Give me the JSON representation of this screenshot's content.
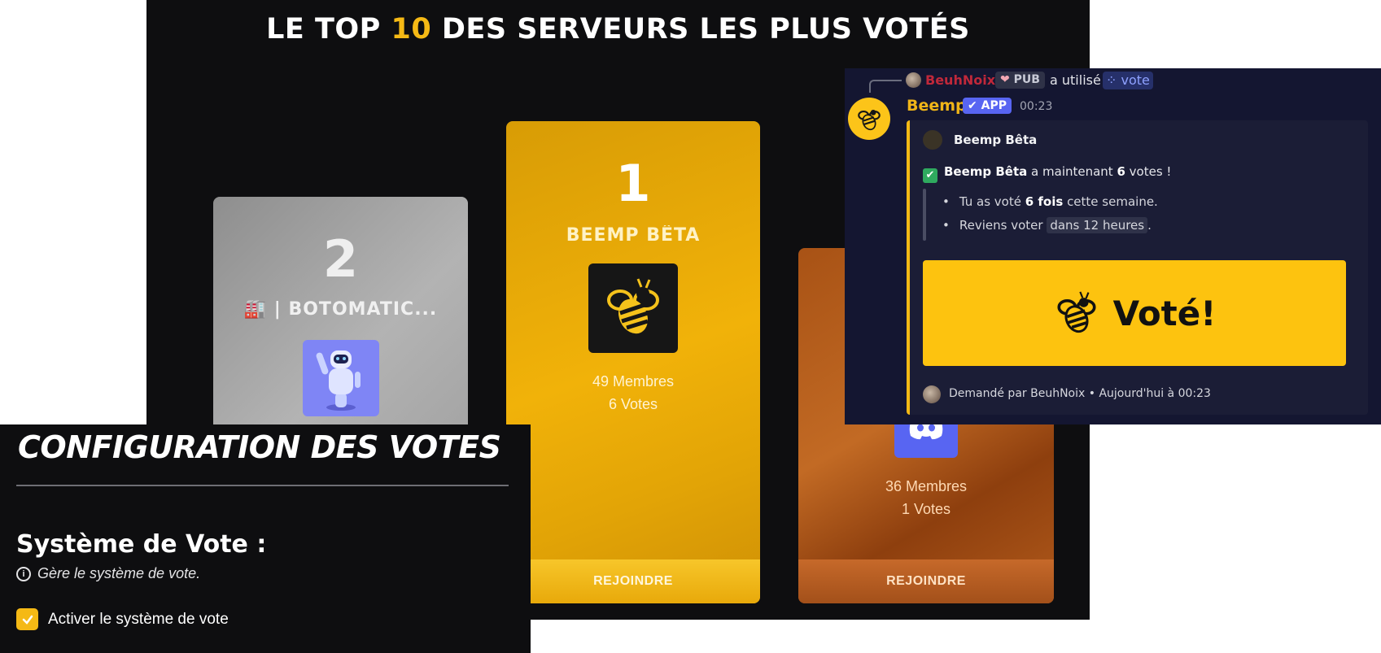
{
  "board": {
    "title_prefix": "LE TOP ",
    "title_highlight": "10",
    "title_suffix": " DES SERVEURS LES PLUS VOTÉS",
    "cards": [
      {
        "rank": "2",
        "name": "🏭 | BOTOMATIC...",
        "logo_icon": "robot-icon"
      },
      {
        "rank": "1",
        "name": "BEEMP BÊTA",
        "members": "49 Membres",
        "votes": "6 Votes",
        "join": "REJOINDRE",
        "logo_icon": "bee-icon"
      },
      {
        "members": "36 Membres",
        "votes": "1 Votes",
        "join": "REJOINDRE",
        "logo_icon": "discord-icon"
      }
    ]
  },
  "discord": {
    "reply_user": "BeuhNoix",
    "reply_tag": "PUB",
    "reply_used": "a utilisé",
    "reply_command": "vote",
    "bot_name": "Beemp",
    "bot_badge": "✔ APP",
    "time": "00:23",
    "embed": {
      "author": "Beemp Bêta",
      "line_server": "Beemp Bêta",
      "line_mid": " a maintenant ",
      "line_count": "6",
      "line_end": " votes !",
      "b1_pre": "Tu as voté ",
      "b1_bold": "6 fois",
      "b1_post": " cette semaine.",
      "b2_pre": "Reviens voter ",
      "b2_code": "dans 12 heures",
      "b2_post": ".",
      "button_label": "Voté!",
      "footer": "Demandé par BeuhNoix • Aujourd'hui à 00:23"
    }
  },
  "config": {
    "title": "CONFIGURATION DES VOTES",
    "section": "Système de Vote :",
    "help": "Gère le système de vote.",
    "checkbox_label": "Activer le système de vote",
    "checkbox_checked": true
  },
  "colors": {
    "accent_yellow": "#f5b915",
    "discord_blurple": "#5865f2",
    "board_bg": "#0e0e10",
    "embed_bg": "#141631"
  }
}
